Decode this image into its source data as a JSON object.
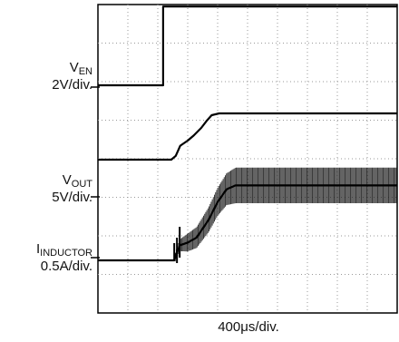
{
  "chart_data": {
    "type": "line",
    "grid": true,
    "x_divisions": 10,
    "y_divisions": 8,
    "xlabel": "400μs/div.",
    "channels": [
      {
        "name": "V",
        "subscript": "EN",
        "scale": "2V/div."
      },
      {
        "name": "V",
        "subscript": "OUT",
        "scale": "5V/div."
      },
      {
        "name": "I",
        "subscript": "INDUCTOR",
        "scale": "0.5A/div."
      }
    ],
    "series": [
      {
        "name": "VEN",
        "units": "div",
        "points": [
          [
            0,
            0
          ],
          [
            2.18,
            0
          ],
          [
            2.18,
            3.1
          ],
          [
            10,
            3.1
          ]
        ]
      },
      {
        "name": "VOUT",
        "units": "div",
        "points": [
          [
            0,
            0
          ],
          [
            2.45,
            0
          ],
          [
            2.6,
            0.15
          ],
          [
            2.75,
            0.55
          ],
          [
            3.0,
            0.75
          ],
          [
            3.2,
            0.95
          ],
          [
            3.45,
            1.25
          ],
          [
            3.65,
            1.55
          ],
          [
            3.8,
            1.75
          ],
          [
            4.05,
            1.82
          ],
          [
            10,
            1.82
          ]
        ]
      },
      {
        "name": "IINDUCTOR",
        "units": "div",
        "points": [
          [
            0,
            0
          ],
          [
            2.55,
            0
          ],
          [
            2.65,
            0.35
          ],
          [
            2.75,
            0.6
          ],
          [
            3.0,
            0.7
          ],
          [
            3.3,
            0.9
          ],
          [
            3.7,
            1.6
          ],
          [
            4.0,
            2.3
          ],
          [
            4.3,
            2.8
          ],
          [
            4.6,
            2.95
          ],
          [
            10,
            2.95
          ]
        ],
        "noise_band": [
          [
            2.55,
            0.15
          ],
          [
            3.0,
            0.35
          ],
          [
            4.0,
            0.55
          ],
          [
            4.6,
            0.7
          ],
          [
            10,
            0.7
          ]
        ]
      }
    ]
  }
}
